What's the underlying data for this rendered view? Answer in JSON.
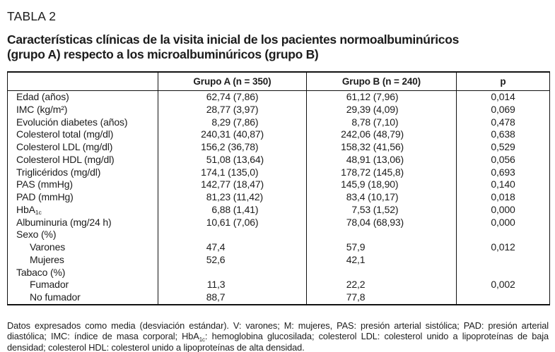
{
  "colors": {
    "background": "#ffffff",
    "text": "#1c1c1c",
    "border": "#111111"
  },
  "page": {
    "kicker": "TABLA 2",
    "title_line1": "Características clínicas de la visita inicial de los pacientes normoalbuminúricos",
    "title_line2": "(grupo A) respecto a los microalbuminúricos (grupo B)"
  },
  "table": {
    "columns": [
      "",
      "Grupo A (n = 350)",
      "Grupo B (n = 240)",
      "p"
    ],
    "rows": [
      {
        "label": "Edad (años)",
        "a": "62,74 (7,86)",
        "b": "61,12 (7,96)",
        "p": "0,014"
      },
      {
        "label": "IMC (kg/m²)",
        "a": "28,77 (3,97)",
        "b": "29,39 (4,09)",
        "p": "0,069"
      },
      {
        "label": "Evolución diabetes (años)",
        "a": "8,29 (7,86)",
        "b": "8,78 (7,10)",
        "p": "0,478"
      },
      {
        "label": "Colesterol total (mg/dl)",
        "a": "240,31 (40,87)",
        "b": "242,06 (48,79)",
        "p": "0,638"
      },
      {
        "label": "Colesterol LDL (mg/dl)",
        "a": "156,2 (36,78)",
        "b": "158,32 (41,56)",
        "p": "0,529"
      },
      {
        "label": "Colesterol HDL (mg/dl)",
        "a": "51,08 (13,64)",
        "b": "48,91 (13,06)",
        "p": "0,056"
      },
      {
        "label": "Triglicéridos (mg/dl)",
        "a": "174,1 (135,0)",
        "b": "178,72 (145,8)",
        "p": "0,693"
      },
      {
        "label": "PAS (mmHg)",
        "a": "142,77 (18,47)",
        "b": "145,9 (18,90)",
        "p": "0,140"
      },
      {
        "label": "PAD (mmHg)",
        "a": "81,23 (11,42)",
        "b": "83,4 (10,17)",
        "p": "0,018"
      },
      {
        "label": "HbA",
        "label_sub": "1c",
        "a": "6,88 (1,41)",
        "b": "7,53 (1,52)",
        "p": "0,000"
      },
      {
        "label": "Albuminuria (mg/24 h)",
        "a": "10,61 (7,06)",
        "b": "78,04 (68,93)",
        "p": "0,000"
      },
      {
        "label": "Sexo (%)",
        "a": "",
        "b": "",
        "p": ""
      },
      {
        "label": "Varones",
        "indent": true,
        "a": "47,4",
        "b": "57,9",
        "p": "0,012"
      },
      {
        "label": "Mujeres",
        "indent": true,
        "a": "52,6",
        "b": "42,1",
        "p": ""
      },
      {
        "label": "Tabaco (%)",
        "a": "",
        "b": "",
        "p": ""
      },
      {
        "label": "Fumador",
        "indent": true,
        "a": "11,3",
        "b": "22,2",
        "p": "0,002"
      },
      {
        "label": "No fumador",
        "indent": true,
        "a": "88,7",
        "b": "77,8",
        "p": ""
      }
    ]
  },
  "footnote": {
    "part1": "Datos expresados como media (desviación estándar). V: varones; M: mujeres, PAS: presión arterial sistólica; PAD: presión arterial diastólica; IMC: índice de masa corporal; HbA",
    "sub": "1c",
    "part2": ": hemoglobina glucosilada; colesterol LDL: colesterol unido a lipoproteínas de baja densidad; colesterol HDL: colesterol unido a lipoproteínas de alta densidad."
  }
}
